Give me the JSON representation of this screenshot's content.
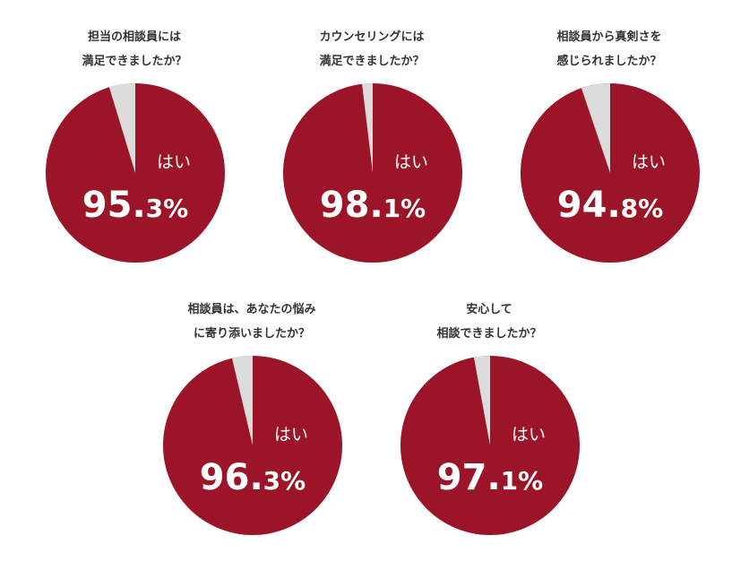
{
  "colors": {
    "yes": "#9B1427",
    "no": "#DCDCDC"
  },
  "chart_data": [
    {
      "type": "pie",
      "title_lines": [
        "担当の相談員には",
        "満足できましたか？"
      ],
      "labels": [
        "はい",
        ""
      ],
      "values": [
        95.3,
        4.7
      ],
      "label": "はい",
      "value_int": "95.",
      "value_dec": "3%"
    },
    {
      "type": "pie",
      "title_lines": [
        "カウンセリングには",
        "満足できましたか？"
      ],
      "labels": [
        "はい",
        ""
      ],
      "values": [
        98.1,
        1.9
      ],
      "label": "はい",
      "value_int": "98.",
      "value_dec": "1%"
    },
    {
      "type": "pie",
      "title_lines": [
        "相談員から真剣さを",
        "感じられましたか？"
      ],
      "labels": [
        "はい",
        ""
      ],
      "values": [
        94.8,
        5.2
      ],
      "label": "はい",
      "value_int": "94.",
      "value_dec": "8%"
    },
    {
      "type": "pie",
      "title_lines": [
        "相談員は、あなたの悩み",
        "に寄り添いましたか？"
      ],
      "labels": [
        "はい",
        ""
      ],
      "values": [
        96.3,
        3.7
      ],
      "label": "はい",
      "value_int": "96.",
      "value_dec": "3%"
    },
    {
      "type": "pie",
      "title_lines": [
        "安心して",
        "相談できましたか？"
      ],
      "labels": [
        "はい",
        ""
      ],
      "values": [
        97.1,
        2.9
      ],
      "label": "はい",
      "value_int": "97.",
      "value_dec": "1%"
    }
  ]
}
